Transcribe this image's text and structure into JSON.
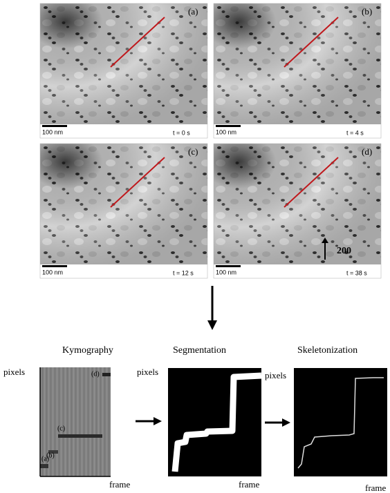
{
  "panels": [
    {
      "label": "(a)",
      "scale_bar": "100 nm",
      "time": "t = 0 s"
    },
    {
      "label": "(b)",
      "scale_bar": "100 nm",
      "time": "t = 4 s"
    },
    {
      "label": "(c)",
      "scale_bar": "100 nm",
      "time": "t = 12 s"
    },
    {
      "label": "(d)",
      "scale_bar": "100 nm",
      "time": "t = 38 s"
    }
  ],
  "panel_annotation": "200",
  "stages": [
    {
      "title": "Kymography",
      "y_label": "pixels",
      "x_label": "frame"
    },
    {
      "title": "Segmentation",
      "y_label": "pixels",
      "x_label": "frame"
    },
    {
      "title": "Skeletonization",
      "y_label": "pixels",
      "x_label": "frame"
    }
  ],
  "kymograph_markers": [
    "(a)",
    "(b)",
    "(c)",
    "(d)"
  ]
}
